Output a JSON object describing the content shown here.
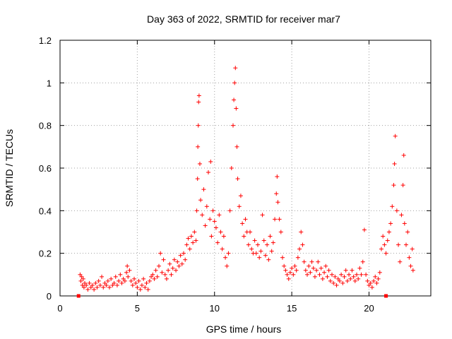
{
  "chart_data": {
    "type": "scatter",
    "title": "Day 363 of 2022, SRMTID for receiver mar7",
    "xlabel": "GPS time / hours",
    "ylabel": "SRMTID / TECUs",
    "xlim": [
      0,
      24
    ],
    "ylim": [
      0,
      1.2
    ],
    "x_ticks": [
      0,
      5,
      10,
      15,
      20
    ],
    "x_tick_labels": [
      "0",
      "5",
      "10",
      "15",
      "20"
    ],
    "y_ticks": [
      0,
      0.2,
      0.4,
      0.6,
      0.8,
      1.0,
      1.2
    ],
    "y_tick_labels": [
      "0",
      "0.2",
      "0.4",
      "0.6",
      "0.8",
      "1",
      "1.2"
    ],
    "grid": true,
    "marker": "plus",
    "color": "#ff0000",
    "data_span_markers": [
      {
        "x": 1.2,
        "y": 0
      },
      {
        "x": 21.1,
        "y": 0
      }
    ],
    "series": [
      {
        "name": "SRMTID",
        "points": [
          [
            1.3,
            0.1
          ],
          [
            1.35,
            0.07
          ],
          [
            1.4,
            0.09
          ],
          [
            1.45,
            0.05
          ],
          [
            1.5,
            0.08
          ],
          [
            1.55,
            0.04
          ],
          [
            1.6,
            0.06
          ],
          [
            1.7,
            0.05
          ],
          [
            1.8,
            0.03
          ],
          [
            1.9,
            0.06
          ],
          [
            2.0,
            0.04
          ],
          [
            2.1,
            0.05
          ],
          [
            2.2,
            0.03
          ],
          [
            2.3,
            0.06
          ],
          [
            2.4,
            0.04
          ],
          [
            2.5,
            0.07
          ],
          [
            2.6,
            0.05
          ],
          [
            2.7,
            0.09
          ],
          [
            2.8,
            0.04
          ],
          [
            2.9,
            0.06
          ],
          [
            3.0,
            0.05
          ],
          [
            3.1,
            0.07
          ],
          [
            3.2,
            0.04
          ],
          [
            3.3,
            0.08
          ],
          [
            3.4,
            0.05
          ],
          [
            3.5,
            0.06
          ],
          [
            3.6,
            0.09
          ],
          [
            3.7,
            0.05
          ],
          [
            3.8,
            0.07
          ],
          [
            3.9,
            0.1
          ],
          [
            4.0,
            0.06
          ],
          [
            4.1,
            0.08
          ],
          [
            4.2,
            0.07
          ],
          [
            4.3,
            0.11
          ],
          [
            4.35,
            0.14
          ],
          [
            4.4,
            0.09
          ],
          [
            4.5,
            0.12
          ],
          [
            4.6,
            0.07
          ],
          [
            4.7,
            0.05
          ],
          [
            4.8,
            0.08
          ],
          [
            4.9,
            0.06
          ],
          [
            5.0,
            0.04
          ],
          [
            5.1,
            0.07
          ],
          [
            5.2,
            0.03
          ],
          [
            5.3,
            0.05
          ],
          [
            5.4,
            0.08
          ],
          [
            5.5,
            0.04
          ],
          [
            5.6,
            0.06
          ],
          [
            5.7,
            0.03
          ],
          [
            5.8,
            0.07
          ],
          [
            5.9,
            0.09
          ],
          [
            6.0,
            0.1
          ],
          [
            6.1,
            0.08
          ],
          [
            6.2,
            0.12
          ],
          [
            6.3,
            0.09
          ],
          [
            6.4,
            0.14
          ],
          [
            6.5,
            0.2
          ],
          [
            6.6,
            0.11
          ],
          [
            6.7,
            0.17
          ],
          [
            6.8,
            0.1
          ],
          [
            6.9,
            0.08
          ],
          [
            7.0,
            0.12
          ],
          [
            7.1,
            0.15
          ],
          [
            7.2,
            0.1
          ],
          [
            7.3,
            0.13
          ],
          [
            7.4,
            0.17
          ],
          [
            7.5,
            0.12
          ],
          [
            7.6,
            0.16
          ],
          [
            7.7,
            0.14
          ],
          [
            7.8,
            0.19
          ],
          [
            7.9,
            0.15
          ],
          [
            8.0,
            0.2
          ],
          [
            8.1,
            0.17
          ],
          [
            8.2,
            0.24
          ],
          [
            8.3,
            0.27
          ],
          [
            8.4,
            0.22
          ],
          [
            8.5,
            0.28
          ],
          [
            8.6,
            0.25
          ],
          [
            8.7,
            0.3
          ],
          [
            8.8,
            0.26
          ],
          [
            8.85,
            0.4
          ],
          [
            8.9,
            0.55
          ],
          [
            8.92,
            0.7
          ],
          [
            8.95,
            0.8
          ],
          [
            8.97,
            0.91
          ],
          [
            9.0,
            0.94
          ],
          [
            9.05,
            0.62
          ],
          [
            9.1,
            0.45
          ],
          [
            9.2,
            0.38
          ],
          [
            9.3,
            0.5
          ],
          [
            9.4,
            0.33
          ],
          [
            9.5,
            0.42
          ],
          [
            9.6,
            0.58
          ],
          [
            9.7,
            0.36
          ],
          [
            9.75,
            0.63
          ],
          [
            9.8,
            0.28
          ],
          [
            9.9,
            0.4
          ],
          [
            10.0,
            0.35
          ],
          [
            10.1,
            0.32
          ],
          [
            10.2,
            0.25
          ],
          [
            10.3,
            0.38
          ],
          [
            10.4,
            0.3
          ],
          [
            10.5,
            0.22
          ],
          [
            10.6,
            0.28
          ],
          [
            10.7,
            0.18
          ],
          [
            10.8,
            0.14
          ],
          [
            10.9,
            0.2
          ],
          [
            11.0,
            0.4
          ],
          [
            11.1,
            0.6
          ],
          [
            11.2,
            0.8
          ],
          [
            11.25,
            0.92
          ],
          [
            11.3,
            1.0
          ],
          [
            11.35,
            1.07
          ],
          [
            11.4,
            0.88
          ],
          [
            11.45,
            0.7
          ],
          [
            11.5,
            0.55
          ],
          [
            11.6,
            0.42
          ],
          [
            11.7,
            0.47
          ],
          [
            11.8,
            0.34
          ],
          [
            11.9,
            0.28
          ],
          [
            12.0,
            0.36
          ],
          [
            12.1,
            0.3
          ],
          [
            12.2,
            0.24
          ],
          [
            12.3,
            0.3
          ],
          [
            12.4,
            0.22
          ],
          [
            12.5,
            0.2
          ],
          [
            12.6,
            0.26
          ],
          [
            12.7,
            0.2
          ],
          [
            12.8,
            0.24
          ],
          [
            12.9,
            0.18
          ],
          [
            13.0,
            0.21
          ],
          [
            13.1,
            0.38
          ],
          [
            13.2,
            0.26
          ],
          [
            13.3,
            0.19
          ],
          [
            13.4,
            0.24
          ],
          [
            13.5,
            0.17
          ],
          [
            13.6,
            0.28
          ],
          [
            13.7,
            0.21
          ],
          [
            13.8,
            0.25
          ],
          [
            13.9,
            0.36
          ],
          [
            14.0,
            0.48
          ],
          [
            14.05,
            0.56
          ],
          [
            14.1,
            0.44
          ],
          [
            14.2,
            0.36
          ],
          [
            14.3,
            0.3
          ],
          [
            14.4,
            0.18
          ],
          [
            14.5,
            0.14
          ],
          [
            14.6,
            0.12
          ],
          [
            14.7,
            0.1
          ],
          [
            14.8,
            0.08
          ],
          [
            14.9,
            0.11
          ],
          [
            15.0,
            0.13
          ],
          [
            15.1,
            0.1
          ],
          [
            15.2,
            0.14
          ],
          [
            15.3,
            0.12
          ],
          [
            15.4,
            0.18
          ],
          [
            15.5,
            0.22
          ],
          [
            15.6,
            0.3
          ],
          [
            15.7,
            0.24
          ],
          [
            15.8,
            0.16
          ],
          [
            15.9,
            0.12
          ],
          [
            16.0,
            0.1
          ],
          [
            16.1,
            0.14
          ],
          [
            16.2,
            0.11
          ],
          [
            16.3,
            0.16
          ],
          [
            16.4,
            0.13
          ],
          [
            16.5,
            0.09
          ],
          [
            16.6,
            0.12
          ],
          [
            16.7,
            0.16
          ],
          [
            16.8,
            0.1
          ],
          [
            16.9,
            0.13
          ],
          [
            17.0,
            0.08
          ],
          [
            17.1,
            0.11
          ],
          [
            17.2,
            0.14
          ],
          [
            17.3,
            0.09
          ],
          [
            17.4,
            0.12
          ],
          [
            17.5,
            0.07
          ],
          [
            17.6,
            0.1
          ],
          [
            17.7,
            0.06
          ],
          [
            17.8,
            0.09
          ],
          [
            17.9,
            0.05
          ],
          [
            18.0,
            0.08
          ],
          [
            18.1,
            0.07
          ],
          [
            18.2,
            0.1
          ],
          [
            18.3,
            0.06
          ],
          [
            18.4,
            0.09
          ],
          [
            18.5,
            0.12
          ],
          [
            18.6,
            0.07
          ],
          [
            18.7,
            0.1
          ],
          [
            18.8,
            0.08
          ],
          [
            18.9,
            0.12
          ],
          [
            19.0,
            0.09
          ],
          [
            19.1,
            0.07
          ],
          [
            19.2,
            0.1
          ],
          [
            19.3,
            0.08
          ],
          [
            19.4,
            0.13
          ],
          [
            19.5,
            0.1
          ],
          [
            19.6,
            0.16
          ],
          [
            19.7,
            0.31
          ],
          [
            19.8,
            0.1
          ],
          [
            19.9,
            0.07
          ],
          [
            20.0,
            0.05
          ],
          [
            20.1,
            0.06
          ],
          [
            20.2,
            0.04
          ],
          [
            20.3,
            0.07
          ],
          [
            20.4,
            0.09
          ],
          [
            20.5,
            0.06
          ],
          [
            20.6,
            0.08
          ],
          [
            20.7,
            0.11
          ],
          [
            20.8,
            0.22
          ],
          [
            20.9,
            0.28
          ],
          [
            21.0,
            0.24
          ],
          [
            21.1,
            0.2
          ],
          [
            21.2,
            0.26
          ],
          [
            21.3,
            0.3
          ],
          [
            21.4,
            0.34
          ],
          [
            21.5,
            0.42
          ],
          [
            21.6,
            0.52
          ],
          [
            21.65,
            0.62
          ],
          [
            21.7,
            0.75
          ],
          [
            21.8,
            0.4
          ],
          [
            21.9,
            0.24
          ],
          [
            22.0,
            0.16
          ],
          [
            22.1,
            0.38
          ],
          [
            22.2,
            0.52
          ],
          [
            22.25,
            0.66
          ],
          [
            22.3,
            0.34
          ],
          [
            22.4,
            0.24
          ],
          [
            22.5,
            0.3
          ],
          [
            22.6,
            0.18
          ],
          [
            22.7,
            0.14
          ],
          [
            22.8,
            0.22
          ],
          [
            22.85,
            0.12
          ]
        ]
      }
    ]
  }
}
